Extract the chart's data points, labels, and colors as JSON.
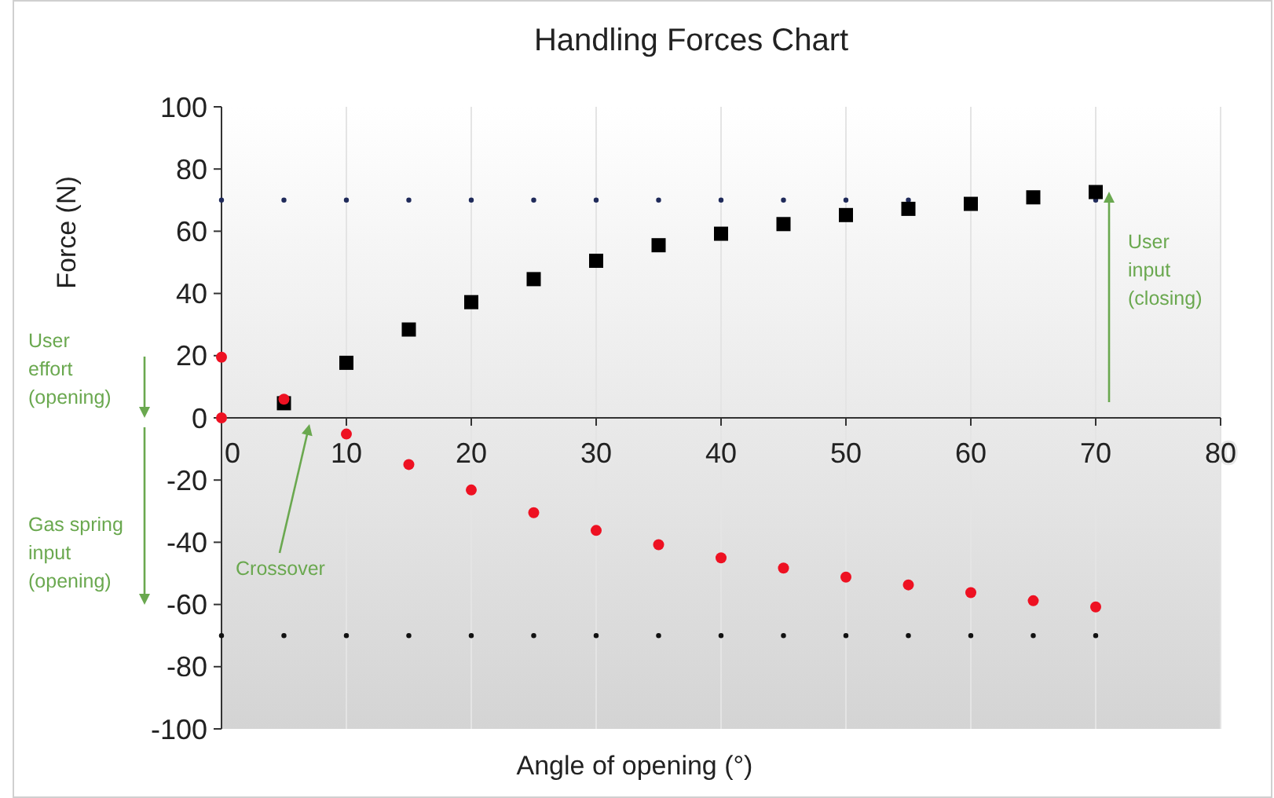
{
  "chart_data": {
    "type": "scatter",
    "title": "Handling Forces Chart",
    "xlabel": "Angle of opening (°)",
    "ylabel": "Force (N)",
    "xlim": [
      0,
      80
    ],
    "xticks": [
      0,
      10,
      20,
      30,
      40,
      50,
      60,
      70,
      80
    ],
    "ylim": [
      -100,
      100
    ],
    "yticks": [
      -100,
      -80,
      -60,
      -40,
      -20,
      0,
      20,
      40,
      60,
      80,
      100
    ],
    "grid": "x",
    "series": [
      {
        "color": "#1f2a5a",
        "marker": "circle",
        "x": [
          0,
          5,
          10,
          15,
          20,
          25,
          30,
          35,
          40,
          45,
          50,
          55,
          70
        ],
        "values": [
          70,
          70,
          70,
          70,
          70,
          70,
          70,
          70,
          70,
          70,
          70,
          70,
          70
        ]
      },
      {
        "color": "#111111",
        "marker": "circle",
        "x": [
          0,
          5,
          10,
          15,
          20,
          25,
          30,
          35,
          40,
          45,
          50,
          55,
          60,
          65,
          70
        ],
        "values": [
          -70,
          -70,
          -70,
          -70,
          -70,
          -70,
          -70,
          -70,
          -70,
          -70,
          -70,
          -70,
          -70,
          -70,
          -70
        ]
      },
      {
        "color": "#000000",
        "marker": "square",
        "x": [
          5,
          10,
          15,
          20,
          25,
          30,
          35,
          40,
          45,
          50,
          55,
          60,
          65,
          70
        ],
        "values": [
          4.7,
          17.7,
          28.4,
          37.2,
          44.6,
          50.5,
          55.5,
          59.2,
          62.3,
          65.2,
          67.2,
          68.8,
          70.9,
          72.6
        ]
      },
      {
        "color": "#ee1122",
        "marker": "circle",
        "x": [
          0,
          0,
          5,
          10,
          15,
          20,
          25,
          30,
          35,
          40,
          45,
          50,
          55,
          60,
          65,
          70
        ],
        "values": [
          19.5,
          0,
          6,
          -5.2,
          -15,
          -23.2,
          -30.5,
          -36.2,
          -40.8,
          -45,
          -48.3,
          -51.2,
          -53.7,
          -56.2,
          -58.8,
          -60.8
        ]
      }
    ],
    "annotations": [
      "User effort (opening)",
      "Gas spring input (opening)",
      "Crossover",
      "User input (closing)"
    ]
  }
}
